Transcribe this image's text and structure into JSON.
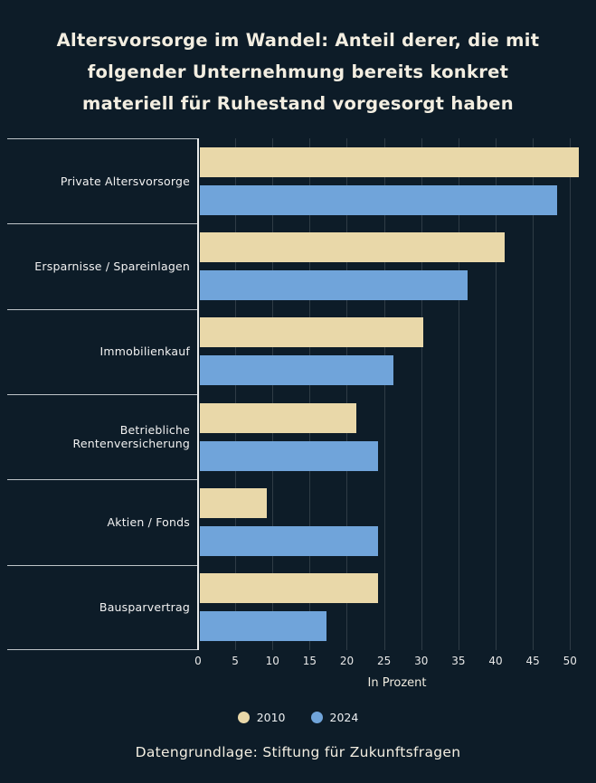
{
  "title": "Altersvorsorge im Wandel: Anteil derer, die mit folgender Unternehmung bereits konkret materiell für Ruhestand vorgesorgt haben",
  "footer": "Datengrundlage: Stiftung für Zukunftsfragen",
  "colors": {
    "background": "#0d1c28",
    "bar_2010": "#e9d8a9",
    "bar_2024": "#70a4da",
    "text": "#f3eee1",
    "grid": "rgba(255,255,255,0.14)",
    "axis": "#e8eaea"
  },
  "chart_data": {
    "type": "bar",
    "orientation": "horizontal",
    "title": "Altersvorsorge im Wandel: Anteil derer, die mit folgender Unternehmung bereits konkret materiell für Ruhestand vorgesorgt haben",
    "categories": [
      "Private Altersvorsorge",
      "Ersparnisse / Spareinlagen",
      "Immobilienkauf",
      "Betriebliche Rentenversicherung",
      "Aktien / Fonds",
      "Bausparvertrag"
    ],
    "series": [
      {
        "name": "2010",
        "color": "#e9d8a9",
        "values": [
          51,
          41,
          30,
          21,
          9,
          24
        ]
      },
      {
        "name": "2024",
        "color": "#70a4da",
        "values": [
          48,
          36,
          26,
          24,
          24,
          17
        ]
      }
    ],
    "xlabel": "In Prozent",
    "xlim": [
      0,
      53.5
    ],
    "xticks": [
      0,
      5,
      10,
      15,
      20,
      25,
      30,
      35,
      40,
      45,
      50
    ],
    "grid": true,
    "legend_position": "bottom",
    "source": "Datengrundlage: Stiftung für Zukunftsfragen"
  }
}
